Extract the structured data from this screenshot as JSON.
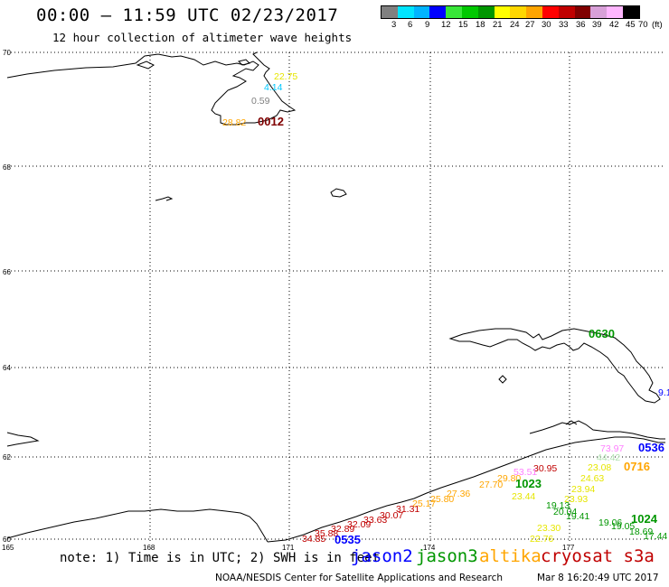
{
  "header": {
    "title": "00:00 — 11:59 UTC 02/23/2017",
    "subtitle": "12 hour collection of altimeter wave heights"
  },
  "legend": {
    "colors": [
      "#808080",
      "#00e5ff",
      "#00b4ff",
      "#0000ff",
      "#39e639",
      "#00c800",
      "#009600",
      "#ffff00",
      "#ffd700",
      "#ffa500",
      "#ff0000",
      "#c00000",
      "#800000",
      "#d8a0d8",
      "#ffb6ff",
      "#000000"
    ],
    "labels": [
      "3",
      "6",
      "9",
      "12",
      "15",
      "18",
      "21",
      "24",
      "27",
      "30",
      "33",
      "36",
      "39",
      "42",
      "45",
      "70",
      "(ft)"
    ]
  },
  "lat_labels": [
    "70",
    "68",
    "66",
    "64",
    "62",
    "60"
  ],
  "lon_labels": [
    "165",
    "168",
    "171",
    "174",
    "177"
  ],
  "wave_heights": [
    {
      "text": "22.75",
      "color": "#e6e600"
    },
    {
      "text": "4.14",
      "color": "#00c8ff"
    },
    {
      "text": "0.59",
      "color": "#808080"
    },
    {
      "text": "28.82",
      "color": "#ffa500"
    },
    {
      "text": "0012",
      "color": "#800000",
      "time": true
    },
    {
      "text": "0630",
      "color": "#009600",
      "time": true
    },
    {
      "text": "9.1",
      "color": "#0000ff"
    },
    {
      "text": "73.97",
      "color": "#ff80ff"
    },
    {
      "text": "0536",
      "color": "#0000ff",
      "time": true
    },
    {
      "text": "44.42",
      "color": "#b0e0b0"
    },
    {
      "text": "23.08",
      "color": "#e6e600"
    },
    {
      "text": "0716",
      "color": "#ffa500",
      "time": true
    },
    {
      "text": "30.95",
      "color": "#c00000"
    },
    {
      "text": "53.51",
      "color": "#ff80ff"
    },
    {
      "text": "29.80",
      "color": "#ffa500"
    },
    {
      "text": "27.70",
      "color": "#ffa500"
    },
    {
      "text": "1023",
      "color": "#009600",
      "time": true
    },
    {
      "text": "24.63",
      "color": "#e6e600"
    },
    {
      "text": "23.94",
      "color": "#e6e600"
    },
    {
      "text": "27.36",
      "color": "#ffa500"
    },
    {
      "text": "23.44",
      "color": "#e6e600"
    },
    {
      "text": "23.93",
      "color": "#e6e600"
    },
    {
      "text": "25.80",
      "color": "#ffa500"
    },
    {
      "text": "19.13",
      "color": "#009600"
    },
    {
      "text": "20.04",
      "color": "#009600"
    },
    {
      "text": "25.17",
      "color": "#ffa500"
    },
    {
      "text": "31.31",
      "color": "#c00000"
    },
    {
      "text": "30.07",
      "color": "#c00000"
    },
    {
      "text": "19.41",
      "color": "#009600"
    },
    {
      "text": "1024",
      "color": "#009600",
      "time": true
    },
    {
      "text": "33.63",
      "color": "#c00000"
    },
    {
      "text": "19.06",
      "color": "#009600"
    },
    {
      "text": "32.09",
      "color": "#c00000"
    },
    {
      "text": "19.05",
      "color": "#009600"
    },
    {
      "text": "32.89",
      "color": "#c00000"
    },
    {
      "text": "18.69",
      "color": "#009600"
    },
    {
      "text": "35.88",
      "color": "#c00000"
    },
    {
      "text": "17.44",
      "color": "#009600"
    },
    {
      "text": "34.85",
      "color": "#c00000"
    },
    {
      "text": "0535",
      "color": "#0000ff",
      "time": true
    },
    {
      "text": "23.30",
      "color": "#e6e600"
    },
    {
      "text": "22.76",
      "color": "#e6e600"
    }
  ],
  "footer": {
    "note": "note: 1) Time is in UTC; 2) SWH is in feet",
    "satellites": [
      {
        "name": "jason2",
        "color": "#0000ff"
      },
      {
        "name": "jason3",
        "color": "#009600"
      },
      {
        "name": "altika",
        "color": "#ffa500"
      },
      {
        "name": "cryosat s3a",
        "color": "#c00000"
      }
    ],
    "credit": "NOAA/NESDIS Center for Satellite Applications and Research",
    "timestamp": "Mar  8 16:20:49 UTC 2017"
  }
}
